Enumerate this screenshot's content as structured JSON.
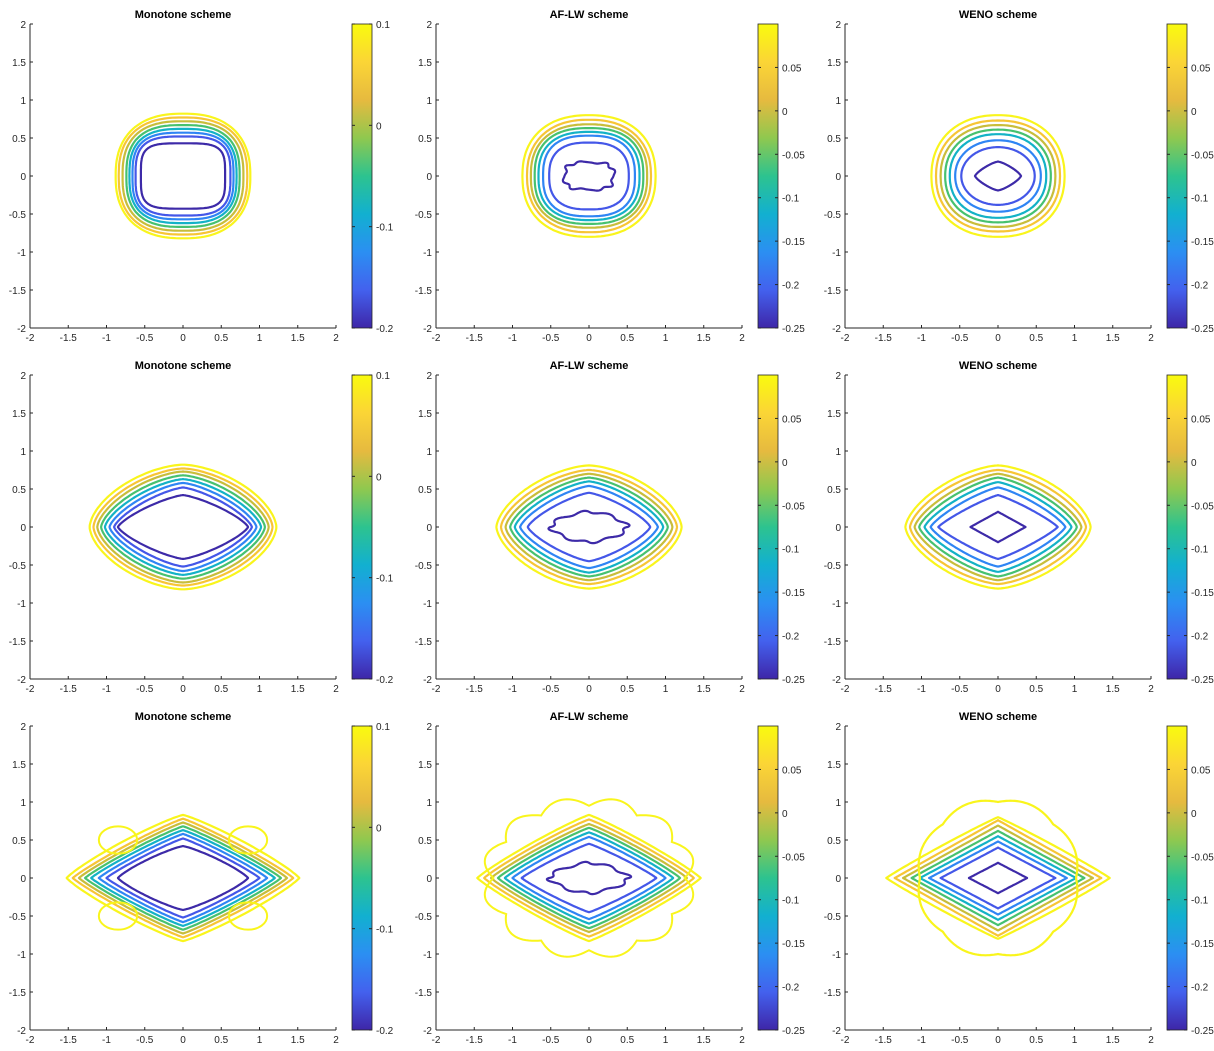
{
  "chart_data": [
    {
      "type": "contour",
      "title": "Monotone scheme",
      "row": 1,
      "scheme": "monotone",
      "xlim": [
        -2,
        2
      ],
      "ylim": [
        -2,
        2
      ],
      "xticks": [
        "-2",
        "-1.5",
        "-1",
        "-0.5",
        "0",
        "0.5",
        "1",
        "1.5",
        "2"
      ],
      "yticks": [
        "2",
        "1.5",
        "1",
        "0.5",
        "0",
        "-0.5",
        "-1",
        "-1.5",
        "-2"
      ],
      "colorbar": {
        "range": [
          -0.2,
          0.1
        ],
        "ticks": [
          "0.1",
          "0",
          "-0.1",
          "-0.2"
        ]
      },
      "levels": [
        {
          "color": "#3d2aa8",
          "a": 0.55,
          "b": 0.43,
          "n": 4
        },
        {
          "color": "#4457e8",
          "a": 0.62,
          "b": 0.52,
          "n": 3.2
        },
        {
          "color": "#2f85f4",
          "a": 0.66,
          "b": 0.57,
          "n": 3.0
        },
        {
          "color": "#13b2c6",
          "a": 0.7,
          "b": 0.62,
          "n": 2.8
        },
        {
          "color": "#47c16f",
          "a": 0.74,
          "b": 0.67,
          "n": 2.7
        },
        {
          "color": "#c8bd3b",
          "a": 0.79,
          "b": 0.72,
          "n": 2.6
        },
        {
          "color": "#f7c535",
          "a": 0.84,
          "b": 0.77,
          "n": 2.5
        },
        {
          "color": "#f9f51c",
          "a": 0.88,
          "b": 0.82,
          "n": 2.4
        }
      ]
    },
    {
      "type": "contour",
      "title": "AF-LW scheme",
      "row": 1,
      "scheme": "aflw",
      "xlim": [
        -2,
        2
      ],
      "ylim": [
        -2,
        2
      ],
      "xticks": [
        "-2",
        "-1.5",
        "-1",
        "-0.5",
        "0",
        "0.5",
        "1",
        "1.5",
        "2"
      ],
      "yticks": [
        "2",
        "1.5",
        "1",
        "0.5",
        "0",
        "-0.5",
        "-1",
        "-1.5",
        "-2"
      ],
      "colorbar": {
        "range": [
          -0.25,
          0.1
        ],
        "ticks": [
          "0.05",
          "0",
          "-0.05",
          "-0.1",
          "-0.15",
          "-0.2",
          "-0.25"
        ]
      },
      "levels": [
        {
          "color": "#3d2aa8",
          "a": 0.32,
          "b": 0.18,
          "n": 3
        },
        {
          "color": "#4457e8",
          "a": 0.52,
          "b": 0.44,
          "n": 2.6
        },
        {
          "color": "#2f85f4",
          "a": 0.6,
          "b": 0.53,
          "n": 2.6
        },
        {
          "color": "#13b2c6",
          "a": 0.66,
          "b": 0.58,
          "n": 2.5
        },
        {
          "color": "#47c16f",
          "a": 0.71,
          "b": 0.63,
          "n": 2.5
        },
        {
          "color": "#c8bd3b",
          "a": 0.76,
          "b": 0.68,
          "n": 2.4
        },
        {
          "color": "#f7c535",
          "a": 0.81,
          "b": 0.74,
          "n": 2.3
        },
        {
          "color": "#f9f51c",
          "a": 0.87,
          "b": 0.8,
          "n": 2.3
        }
      ]
    },
    {
      "type": "contour",
      "title": "WENO scheme",
      "row": 1,
      "scheme": "weno",
      "xlim": [
        -2,
        2
      ],
      "ylim": [
        -2,
        2
      ],
      "xticks": [
        "-2",
        "-1.5",
        "-1",
        "-0.5",
        "0",
        "0.5",
        "1",
        "1.5",
        "2"
      ],
      "yticks": [
        "2",
        "1.5",
        "1",
        "0.5",
        "0",
        "-0.5",
        "-1",
        "-1.5",
        "-2"
      ],
      "colorbar": {
        "range": [
          -0.25,
          0.1
        ],
        "ticks": [
          "0.05",
          "0",
          "-0.05",
          "-0.1",
          "-0.15",
          "-0.2",
          "-0.25"
        ]
      },
      "levels": [
        {
          "color": "#3d2aa8",
          "a": 0.3,
          "b": 0.19,
          "n": 1.3
        },
        {
          "color": "#4457e8",
          "a": 0.48,
          "b": 0.38,
          "n": 2.0
        },
        {
          "color": "#2f85f4",
          "a": 0.56,
          "b": 0.47,
          "n": 2.1
        },
        {
          "color": "#13b2c6",
          "a": 0.63,
          "b": 0.55,
          "n": 2.2
        },
        {
          "color": "#47c16f",
          "a": 0.69,
          "b": 0.61,
          "n": 2.2
        },
        {
          "color": "#c8bd3b",
          "a": 0.75,
          "b": 0.67,
          "n": 2.2
        },
        {
          "color": "#f7c535",
          "a": 0.81,
          "b": 0.73,
          "n": 2.2
        },
        {
          "color": "#f9f51c",
          "a": 0.87,
          "b": 0.8,
          "n": 2.2
        }
      ]
    },
    {
      "type": "contour",
      "title": "Monotone scheme",
      "row": 2,
      "scheme": "monotone",
      "xlim": [
        -2,
        2
      ],
      "ylim": [
        -2,
        2
      ],
      "xticks": [
        "-2",
        "-1.5",
        "-1",
        "-0.5",
        "0",
        "0.5",
        "1",
        "1.5",
        "2"
      ],
      "yticks": [
        "2",
        "1.5",
        "1",
        "0.5",
        "0",
        "-0.5",
        "-1",
        "-1.5",
        "-2"
      ],
      "colorbar": {
        "range": [
          -0.2,
          0.1
        ],
        "ticks": [
          "0.1",
          "0",
          "-0.1",
          "-0.2"
        ]
      },
      "levels": [
        {
          "color": "#3d2aa8",
          "a": 0.85,
          "b": 0.42,
          "n": 1.3
        },
        {
          "color": "#4457e8",
          "a": 0.9,
          "b": 0.52,
          "n": 1.35
        },
        {
          "color": "#2f85f4",
          "a": 0.96,
          "b": 0.58,
          "n": 1.4
        },
        {
          "color": "#13b2c6",
          "a": 1.02,
          "b": 0.63,
          "n": 1.45
        },
        {
          "color": "#47c16f",
          "a": 1.07,
          "b": 0.68,
          "n": 1.5
        },
        {
          "color": "#c8bd3b",
          "a": 1.12,
          "b": 0.73,
          "n": 1.55
        },
        {
          "color": "#f7c535",
          "a": 1.17,
          "b": 0.77,
          "n": 1.6
        },
        {
          "color": "#f9f51c",
          "a": 1.22,
          "b": 0.82,
          "n": 1.65
        }
      ]
    },
    {
      "type": "contour",
      "title": "AF-LW scheme",
      "row": 2,
      "scheme": "aflw",
      "xlim": [
        -2,
        2
      ],
      "ylim": [
        -2,
        2
      ],
      "xticks": [
        "-2",
        "-1.5",
        "-1",
        "-0.5",
        "0",
        "0.5",
        "1",
        "1.5",
        "2"
      ],
      "yticks": [
        "2",
        "1.5",
        "1",
        "0.5",
        "0",
        "-0.5",
        "-1",
        "-1.5",
        "-2"
      ],
      "colorbar": {
        "range": [
          -0.25,
          0.1
        ],
        "ticks": [
          "0.05",
          "0",
          "-0.05",
          "-0.1",
          "-0.15",
          "-0.2",
          "-0.25"
        ]
      },
      "levels": [
        {
          "color": "#3d2aa8",
          "a": 0.5,
          "b": 0.2,
          "n": 1.6
        },
        {
          "color": "#4457e8",
          "a": 0.8,
          "b": 0.45,
          "n": 1.3
        },
        {
          "color": "#2f85f4",
          "a": 0.9,
          "b": 0.54,
          "n": 1.35
        },
        {
          "color": "#13b2c6",
          "a": 0.97,
          "b": 0.6,
          "n": 1.4
        },
        {
          "color": "#47c16f",
          "a": 1.03,
          "b": 0.65,
          "n": 1.45
        },
        {
          "color": "#c8bd3b",
          "a": 1.09,
          "b": 0.7,
          "n": 1.5
        },
        {
          "color": "#f7c535",
          "a": 1.15,
          "b": 0.75,
          "n": 1.55
        },
        {
          "color": "#f9f51c",
          "a": 1.21,
          "b": 0.81,
          "n": 1.6
        }
      ]
    },
    {
      "type": "contour",
      "title": "WENO scheme",
      "row": 2,
      "scheme": "weno",
      "xlim": [
        -2,
        2
      ],
      "ylim": [
        -2,
        2
      ],
      "xticks": [
        "-2",
        "-1.5",
        "-1",
        "-0.5",
        "0",
        "0.5",
        "1",
        "1.5",
        "2"
      ],
      "yticks": [
        "2",
        "1.5",
        "1",
        "0.5",
        "0",
        "-0.5",
        "-1",
        "-1.5",
        "-2"
      ],
      "colorbar": {
        "range": [
          -0.25,
          0.1
        ],
        "ticks": [
          "0.05",
          "0",
          "-0.05",
          "-0.1",
          "-0.15",
          "-0.2",
          "-0.25"
        ]
      },
      "levels": [
        {
          "color": "#3d2aa8",
          "a": 0.36,
          "b": 0.2,
          "n": 1.0
        },
        {
          "color": "#4457e8",
          "a": 0.78,
          "b": 0.42,
          "n": 1.15
        },
        {
          "color": "#2f85f4",
          "a": 0.88,
          "b": 0.52,
          "n": 1.25
        },
        {
          "color": "#13b2c6",
          "a": 0.96,
          "b": 0.59,
          "n": 1.3
        },
        {
          "color": "#47c16f",
          "a": 1.03,
          "b": 0.65,
          "n": 1.35
        },
        {
          "color": "#c8bd3b",
          "a": 1.09,
          "b": 0.7,
          "n": 1.4
        },
        {
          "color": "#f7c535",
          "a": 1.15,
          "b": 0.75,
          "n": 1.5
        },
        {
          "color": "#f9f51c",
          "a": 1.21,
          "b": 0.81,
          "n": 1.55
        }
      ]
    },
    {
      "type": "contour",
      "title": "Monotone scheme",
      "row": 3,
      "scheme": "monotone",
      "xlim": [
        -2,
        2
      ],
      "ylim": [
        -2,
        2
      ],
      "xticks": [
        "-2",
        "-1.5",
        "-1",
        "-0.5",
        "0",
        "0.5",
        "1",
        "1.5",
        "2"
      ],
      "yticks": [
        "2",
        "1.5",
        "1",
        "0.5",
        "0",
        "-0.5",
        "-1",
        "-1.5",
        "-2"
      ],
      "colorbar": {
        "range": [
          -0.2,
          0.1
        ],
        "ticks": [
          "0.1",
          "0",
          "-0.1",
          "-0.2"
        ]
      },
      "levels": [
        {
          "color": "#3d2aa8",
          "a": 0.85,
          "b": 0.42,
          "n": 1.2
        },
        {
          "color": "#4457e8",
          "a": 1.0,
          "b": 0.52,
          "n": 1.1
        },
        {
          "color": "#2f85f4",
          "a": 1.1,
          "b": 0.58,
          "n": 1.1
        },
        {
          "color": "#13b2c6",
          "a": 1.2,
          "b": 0.63,
          "n": 1.1
        },
        {
          "color": "#47c16f",
          "a": 1.28,
          "b": 0.68,
          "n": 1.1
        },
        {
          "color": "#c8bd3b",
          "a": 1.36,
          "b": 0.73,
          "n": 1.1
        },
        {
          "color": "#f7c535",
          "a": 1.44,
          "b": 0.78,
          "n": 1.1
        },
        {
          "color": "#f9f51c",
          "a": 1.52,
          "b": 0.83,
          "n": 1.15
        }
      ]
    },
    {
      "type": "contour",
      "title": "AF-LW scheme",
      "row": 3,
      "scheme": "aflw",
      "xlim": [
        -2,
        2
      ],
      "ylim": [
        -2,
        2
      ],
      "xticks": [
        "-2",
        "-1.5",
        "-1",
        "-0.5",
        "0",
        "0.5",
        "1",
        "1.5",
        "2"
      ],
      "yticks": [
        "2",
        "1.5",
        "1",
        "0.5",
        "0",
        "-0.5",
        "-1",
        "-1.5",
        "-2"
      ],
      "colorbar": {
        "range": [
          -0.25,
          0.1
        ],
        "ticks": [
          "0.05",
          "0",
          "-0.05",
          "-0.1",
          "-0.15",
          "-0.2",
          "-0.25"
        ]
      },
      "levels": [
        {
          "color": "#3d2aa8",
          "a": 0.52,
          "b": 0.2,
          "n": 1.5
        },
        {
          "color": "#4457e8",
          "a": 0.88,
          "b": 0.45,
          "n": 1.1
        },
        {
          "color": "#2f85f4",
          "a": 1.0,
          "b": 0.54,
          "n": 1.1
        },
        {
          "color": "#13b2c6",
          "a": 1.1,
          "b": 0.6,
          "n": 1.1
        },
        {
          "color": "#47c16f",
          "a": 1.19,
          "b": 0.66,
          "n": 1.1
        },
        {
          "color": "#c8bd3b",
          "a": 1.28,
          "b": 0.71,
          "n": 1.1
        },
        {
          "color": "#f7c535",
          "a": 1.37,
          "b": 0.77,
          "n": 1.1
        },
        {
          "color": "#f9f51c",
          "a": 1.46,
          "b": 0.83,
          "n": 1.1
        }
      ]
    },
    {
      "type": "contour",
      "title": "WENO scheme",
      "row": 3,
      "scheme": "weno",
      "xlim": [
        -2,
        2
      ],
      "ylim": [
        -2,
        2
      ],
      "xticks": [
        "-2",
        "-1.5",
        "-1",
        "-0.5",
        "0",
        "0.5",
        "1",
        "1.5",
        "2"
      ],
      "yticks": [
        "2",
        "1.5",
        "1",
        "0.5",
        "0",
        "-0.5",
        "-1",
        "-1.5",
        "-2"
      ],
      "colorbar": {
        "range": [
          -0.25,
          0.1
        ],
        "ticks": [
          "0.05",
          "0",
          "-0.05",
          "-0.1",
          "-0.15",
          "-0.2",
          "-0.25"
        ]
      },
      "levels": [
        {
          "color": "#3d2aa8",
          "a": 0.38,
          "b": 0.2,
          "n": 1.0
        },
        {
          "color": "#4457e8",
          "a": 0.75,
          "b": 0.4,
          "n": 1.0
        },
        {
          "color": "#2f85f4",
          "a": 0.9,
          "b": 0.48,
          "n": 1.0
        },
        {
          "color": "#13b2c6",
          "a": 1.02,
          "b": 0.55,
          "n": 1.0
        },
        {
          "color": "#47c16f",
          "a": 1.13,
          "b": 0.62,
          "n": 1.0
        },
        {
          "color": "#c8bd3b",
          "a": 1.24,
          "b": 0.69,
          "n": 1.0
        },
        {
          "color": "#f7c535",
          "a": 1.35,
          "b": 0.76,
          "n": 1.0
        },
        {
          "color": "#f9f51c",
          "a": 1.46,
          "b": 0.8,
          "n": 1.05
        }
      ]
    }
  ],
  "colormap": [
    "#3e26a8",
    "#4361ee",
    "#2b8ff2",
    "#12b0d0",
    "#2dc38f",
    "#8fc84f",
    "#e6ba3f",
    "#fbd536",
    "#f9fb0e"
  ],
  "outer_contour_color": "#f9f51c"
}
